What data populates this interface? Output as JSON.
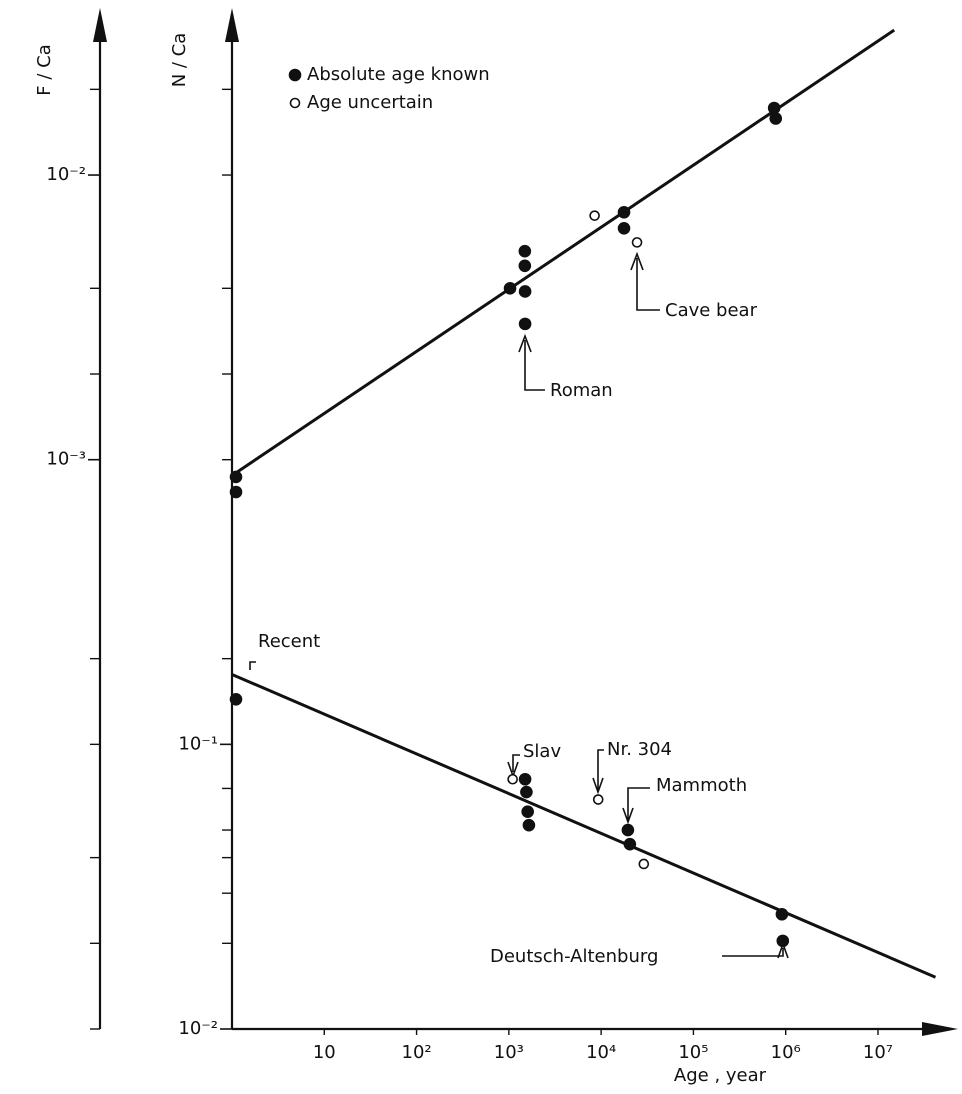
{
  "chart_data": {
    "type": "scatter",
    "xlabel": "Age , year",
    "ylabel": "N / Ca",
    "y2label": "F / Ca",
    "log_x": true,
    "log_y": true,
    "xlim": [
      1,
      47000000
    ],
    "xticks": [
      10,
      {
        "value": 100,
        "label": "10²"
      },
      {
        "value": 1000,
        "label": "10³"
      },
      {
        "value": 10000,
        "label": "10⁴"
      },
      {
        "value": 100000,
        "label": "10⁵"
      },
      {
        "value": 1000000,
        "label": "10⁶"
      },
      {
        "value": 10000000,
        "label": "10⁷"
      }
    ],
    "ylim": [
      0.01,
      38
    ],
    "yticks": [
      {
        "value": 0.01,
        "label": "10⁻²"
      },
      {
        "value": 0.1,
        "label": "10⁻¹"
      }
    ],
    "yminor": [
      0.02,
      0.03,
      0.04,
      0.05,
      0.07,
      0.2,
      1,
      2,
      4,
      10,
      20
    ],
    "y2lim": [
      1e-05,
      0.038
    ],
    "y2ticks": [
      {
        "value": 0.001,
        "label": "10⁻³"
      },
      {
        "value": 0.01,
        "label": "10⁻²"
      }
    ],
    "y2minor": [
      1e-05,
      2e-05,
      4e-05,
      0.0001,
      0.0002,
      0.002,
      0.004,
      0.02
    ],
    "series": [
      {
        "name": "Absolute age known",
        "filled": true,
        "axis": "y2",
        "x": [
          1,
          1,
          1490,
          1490,
          1030,
          1500,
          1500,
          17700,
          17700,
          750000,
          780000
        ],
        "values": [
          0.00087,
          0.00077,
          0.0054,
          0.0048,
          0.004,
          0.0039,
          0.003,
          0.0074,
          0.0065,
          0.0172,
          0.0158
        ]
      },
      {
        "name": "Age uncertain",
        "filled": false,
        "axis": "y2",
        "x": [
          8500,
          24500
        ],
        "values": [
          0.0072,
          0.0058
        ]
      },
      {
        "filled": true,
        "axis": "y",
        "x": [
          1,
          1500,
          1550,
          1600,
          1650,
          19500,
          20500,
          910000,
          930000
        ],
        "values": [
          0.144,
          0.0754,
          0.068,
          0.058,
          0.052,
          0.05,
          0.0446,
          0.0253,
          0.0204
        ]
      },
      {
        "filled": false,
        "axis": "y",
        "x": [
          1100,
          9300,
          29000
        ],
        "values": [
          0.0754,
          0.064,
          0.038
        ]
      }
    ],
    "fits": [
      {
        "axis": "y2",
        "x": [
          1,
          15000000
        ],
        "values": [
          0.00088,
          0.0323
        ]
      },
      {
        "axis": "y",
        "x": [
          1,
          42000000
        ],
        "values": [
          0.176,
          0.0152
        ]
      }
    ],
    "annotations": [
      "Roman",
      "Cave bear",
      "Recent",
      "Slav",
      "Nr. 304",
      "Mammoth",
      "Deutsch-Altenburg"
    ]
  }
}
